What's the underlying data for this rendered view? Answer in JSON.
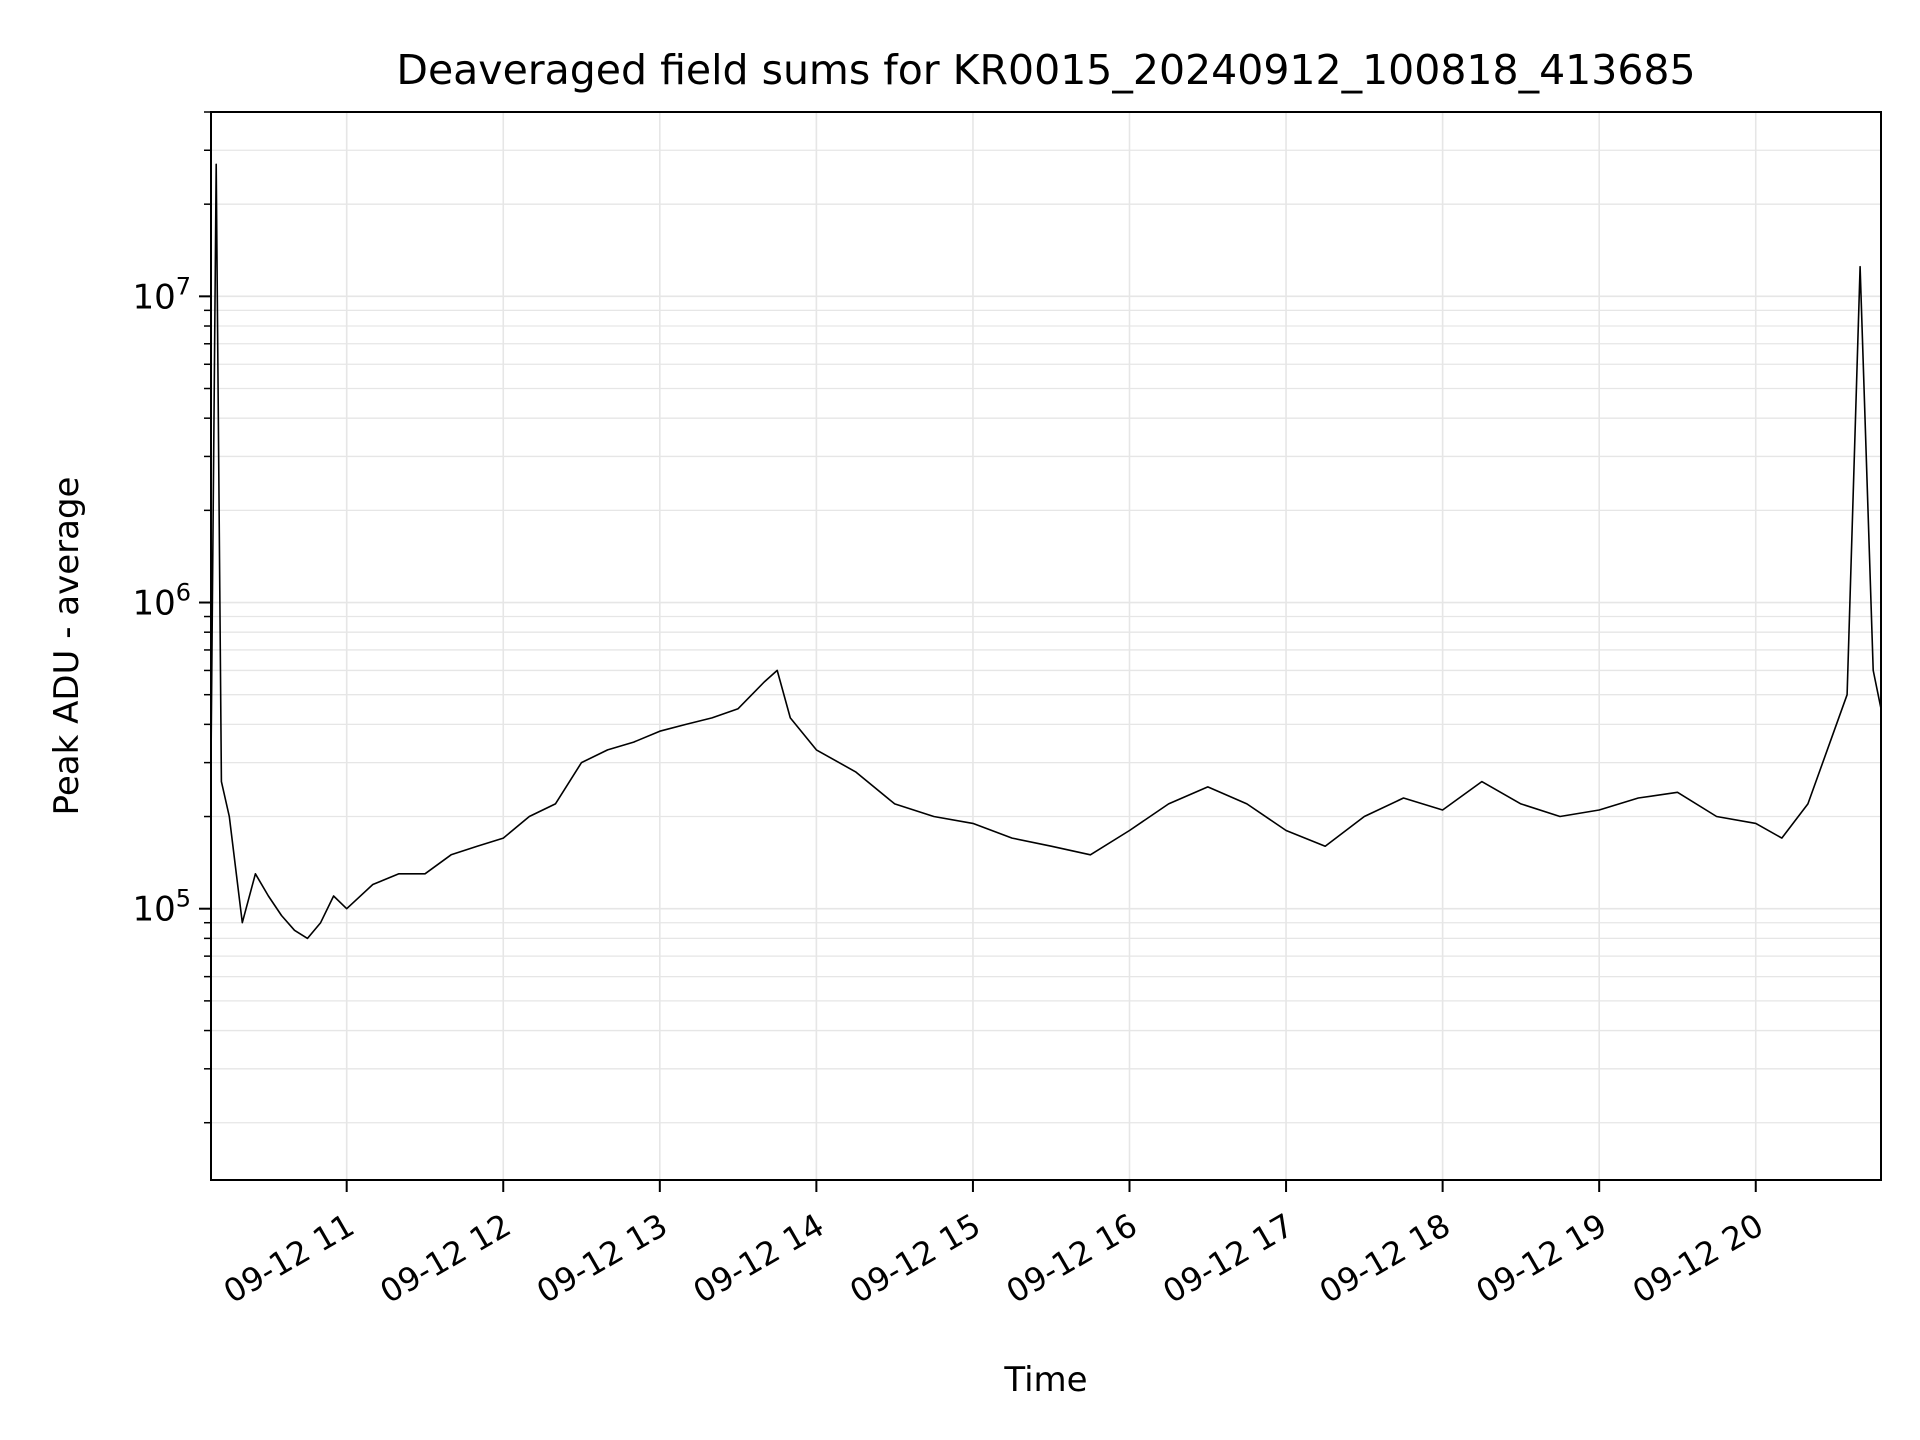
{
  "chart_data": {
    "type": "line",
    "title": "Deaveraged field sums for KR0015_20240912_100818_413685",
    "xlabel": "Time",
    "ylabel": "Peak ADU - average",
    "yscale": "log",
    "xlim": [
      "2024-09-12 10:08",
      "2024-09-12 20:48"
    ],
    "ylim": [
      13000,
      40000000
    ],
    "grid": true,
    "legend": "none",
    "line_color": "#000000",
    "x_ticks": [
      {
        "time": "2024-09-12 11:00",
        "label": "09-12 11"
      },
      {
        "time": "2024-09-12 12:00",
        "label": "09-12 12"
      },
      {
        "time": "2024-09-12 13:00",
        "label": "09-12 13"
      },
      {
        "time": "2024-09-12 14:00",
        "label": "09-12 14"
      },
      {
        "time": "2024-09-12 15:00",
        "label": "09-12 15"
      },
      {
        "time": "2024-09-12 16:00",
        "label": "09-12 16"
      },
      {
        "time": "2024-09-12 17:00",
        "label": "09-12 17"
      },
      {
        "time": "2024-09-12 18:00",
        "label": "09-12 18"
      },
      {
        "time": "2024-09-12 19:00",
        "label": "09-12 19"
      },
      {
        "time": "2024-09-12 20:00",
        "label": "09-12 20"
      }
    ],
    "y_ticks": [
      {
        "value": 100000,
        "label": "10",
        "exp": "5"
      },
      {
        "value": 1000000,
        "label": "10",
        "exp": "6"
      },
      {
        "value": 10000000,
        "label": "10",
        "exp": "7"
      }
    ],
    "series": [
      {
        "x": [
          "2024-09-12 10:08",
          "2024-09-12 10:10",
          "2024-09-12 10:12",
          "2024-09-12 10:15",
          "2024-09-12 10:20",
          "2024-09-12 10:25",
          "2024-09-12 10:30",
          "2024-09-12 10:35",
          "2024-09-12 10:40",
          "2024-09-12 10:45",
          "2024-09-12 10:50",
          "2024-09-12 10:55",
          "2024-09-12 11:00",
          "2024-09-12 11:10",
          "2024-09-12 11:20",
          "2024-09-12 11:30",
          "2024-09-12 11:40",
          "2024-09-12 11:50",
          "2024-09-12 12:00",
          "2024-09-12 12:10",
          "2024-09-12 12:20",
          "2024-09-12 12:30",
          "2024-09-12 12:40",
          "2024-09-12 12:50",
          "2024-09-12 13:00",
          "2024-09-12 13:10",
          "2024-09-12 13:20",
          "2024-09-12 13:30",
          "2024-09-12 13:40",
          "2024-09-12 13:45",
          "2024-09-12 13:50",
          "2024-09-12 14:00",
          "2024-09-12 14:15",
          "2024-09-12 14:30",
          "2024-09-12 14:45",
          "2024-09-12 15:00",
          "2024-09-12 15:15",
          "2024-09-12 15:30",
          "2024-09-12 15:45",
          "2024-09-12 16:00",
          "2024-09-12 16:15",
          "2024-09-12 16:30",
          "2024-09-12 16:45",
          "2024-09-12 17:00",
          "2024-09-12 17:15",
          "2024-09-12 17:30",
          "2024-09-12 17:45",
          "2024-09-12 18:00",
          "2024-09-12 18:15",
          "2024-09-12 18:30",
          "2024-09-12 18:45",
          "2024-09-12 19:00",
          "2024-09-12 19:15",
          "2024-09-12 19:30",
          "2024-09-12 19:45",
          "2024-09-12 20:00",
          "2024-09-12 20:10",
          "2024-09-12 20:20",
          "2024-09-12 20:30",
          "2024-09-12 20:35",
          "2024-09-12 20:40",
          "2024-09-12 20:45",
          "2024-09-12 20:48"
        ],
        "values": [
          300000,
          27000000,
          260000,
          200000,
          90000,
          130000,
          110000,
          95000,
          85000,
          80000,
          90000,
          110000,
          100000,
          120000,
          130000,
          130000,
          150000,
          160000,
          170000,
          200000,
          220000,
          300000,
          330000,
          350000,
          380000,
          400000,
          420000,
          450000,
          550000,
          600000,
          420000,
          330000,
          280000,
          220000,
          200000,
          190000,
          170000,
          160000,
          150000,
          180000,
          220000,
          250000,
          220000,
          180000,
          160000,
          200000,
          230000,
          210000,
          260000,
          220000,
          200000,
          210000,
          230000,
          240000,
          200000,
          190000,
          170000,
          220000,
          380000,
          500000,
          12500000,
          600000,
          450000
        ]
      }
    ]
  }
}
